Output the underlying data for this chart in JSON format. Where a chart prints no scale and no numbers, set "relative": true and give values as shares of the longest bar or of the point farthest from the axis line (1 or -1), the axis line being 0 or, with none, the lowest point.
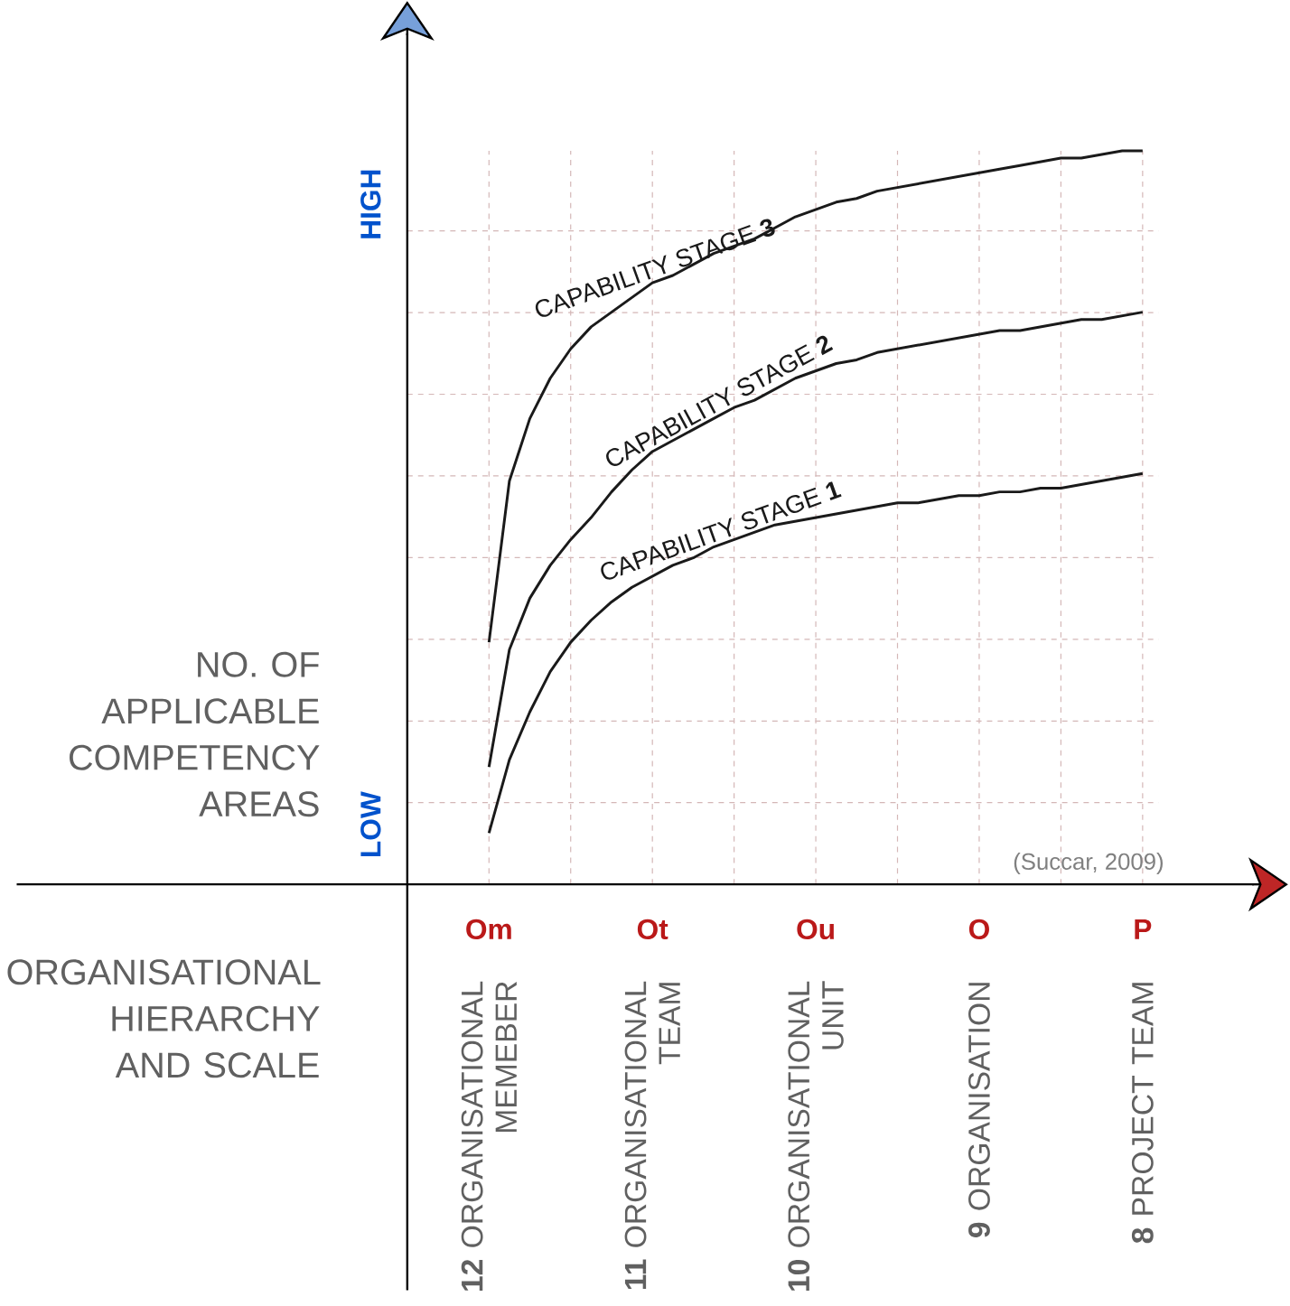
{
  "chart_data": {
    "type": "line",
    "relative": true,
    "xlabel": "ORGANISATIONAL HIERARCHY AND SCALE",
    "ylabel": "NO. OF APPLICABLE COMPETENCY AREAS",
    "categories": [
      "Om",
      null,
      null,
      null,
      null,
      null,
      null,
      null,
      "Ot",
      null,
      null,
      null,
      null,
      null,
      null,
      null,
      "Ou",
      null,
      null,
      null,
      null,
      null,
      null,
      null,
      "O",
      null,
      null,
      null,
      null,
      null,
      null,
      null,
      "P"
    ],
    "grid": true,
    "marker": "none",
    "line_style": "solid",
    "series": [
      {
        "name": "CAPABILITY STAGE **3**",
        "color": "#1a1a1a",
        "values": [
          0.33,
          0.55,
          0.635,
          0.69,
          0.73,
          0.76,
          0.78,
          0.8,
          0.82,
          0.83,
          0.845,
          0.86,
          0.87,
          0.88,
          0.895,
          0.91,
          0.92,
          0.93,
          0.935,
          0.945,
          0.95,
          0.955,
          0.96,
          0.965,
          0.97,
          0.975,
          0.98,
          0.985,
          0.99,
          0.99,
          0.995,
          1,
          1
        ]
      },
      {
        "name": "CAPABILITY STAGE **2**",
        "color": "#1a1a1a",
        "values": [
          0.16,
          0.32,
          0.39,
          0.435,
          0.47,
          0.5,
          0.535,
          0.565,
          0.59,
          0.605,
          0.62,
          0.635,
          0.65,
          0.66,
          0.675,
          0.69,
          0.7,
          0.71,
          0.715,
          0.725,
          0.73,
          0.735,
          0.74,
          0.745,
          0.75,
          0.755,
          0.755,
          0.76,
          0.765,
          0.77,
          0.77,
          0.775,
          0.78
        ]
      },
      {
        "name": "CAPABILITY STAGE **1**",
        "color": "#1a1a1a",
        "values": [
          0.07,
          0.17,
          0.235,
          0.29,
          0.33,
          0.36,
          0.385,
          0.405,
          0.42,
          0.435,
          0.445,
          0.46,
          0.47,
          0.48,
          0.49,
          0.495,
          0.5,
          0.505,
          0.51,
          0.515,
          0.52,
          0.52,
          0.525,
          0.53,
          0.53,
          0.535,
          0.535,
          0.54,
          0.54,
          0.545,
          0.55,
          0.555,
          0.56
        ]
      }
    ],
    "annotations": [
      "(Succar, 2009)",
      "HIGH",
      "LOW",
      "**12** ORGANISATIONAL MEMEBER",
      "**11** ORGANISATIONAL TEAM",
      "**10** ORGANISATIONAL UNIT",
      "**9** ORGANISATION",
      "**8** PROJECT TEAM"
    ]
  }
}
